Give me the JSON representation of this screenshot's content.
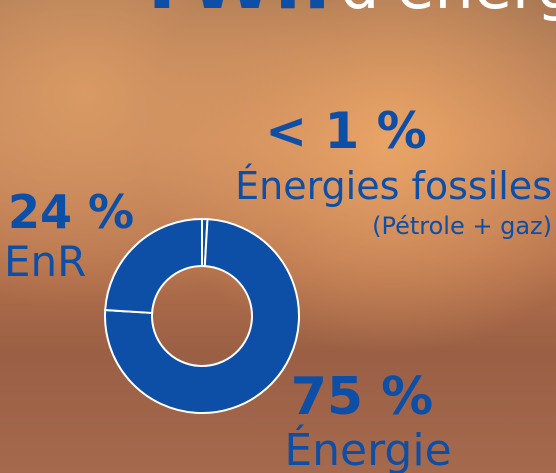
{
  "chart_data": {
    "type": "donut",
    "title": "TWh",
    "subtitle": "d'énergie",
    "categories": [
      "Énergies fossiles",
      "Énergie",
      "EnR"
    ],
    "values": [
      0.9,
      75,
      24
    ],
    "value_labels": [
      "< 1 %",
      "75 %",
      "24 %"
    ],
    "annotation": "(Pétrole + gaz)",
    "color": "#0d4ea6"
  }
}
